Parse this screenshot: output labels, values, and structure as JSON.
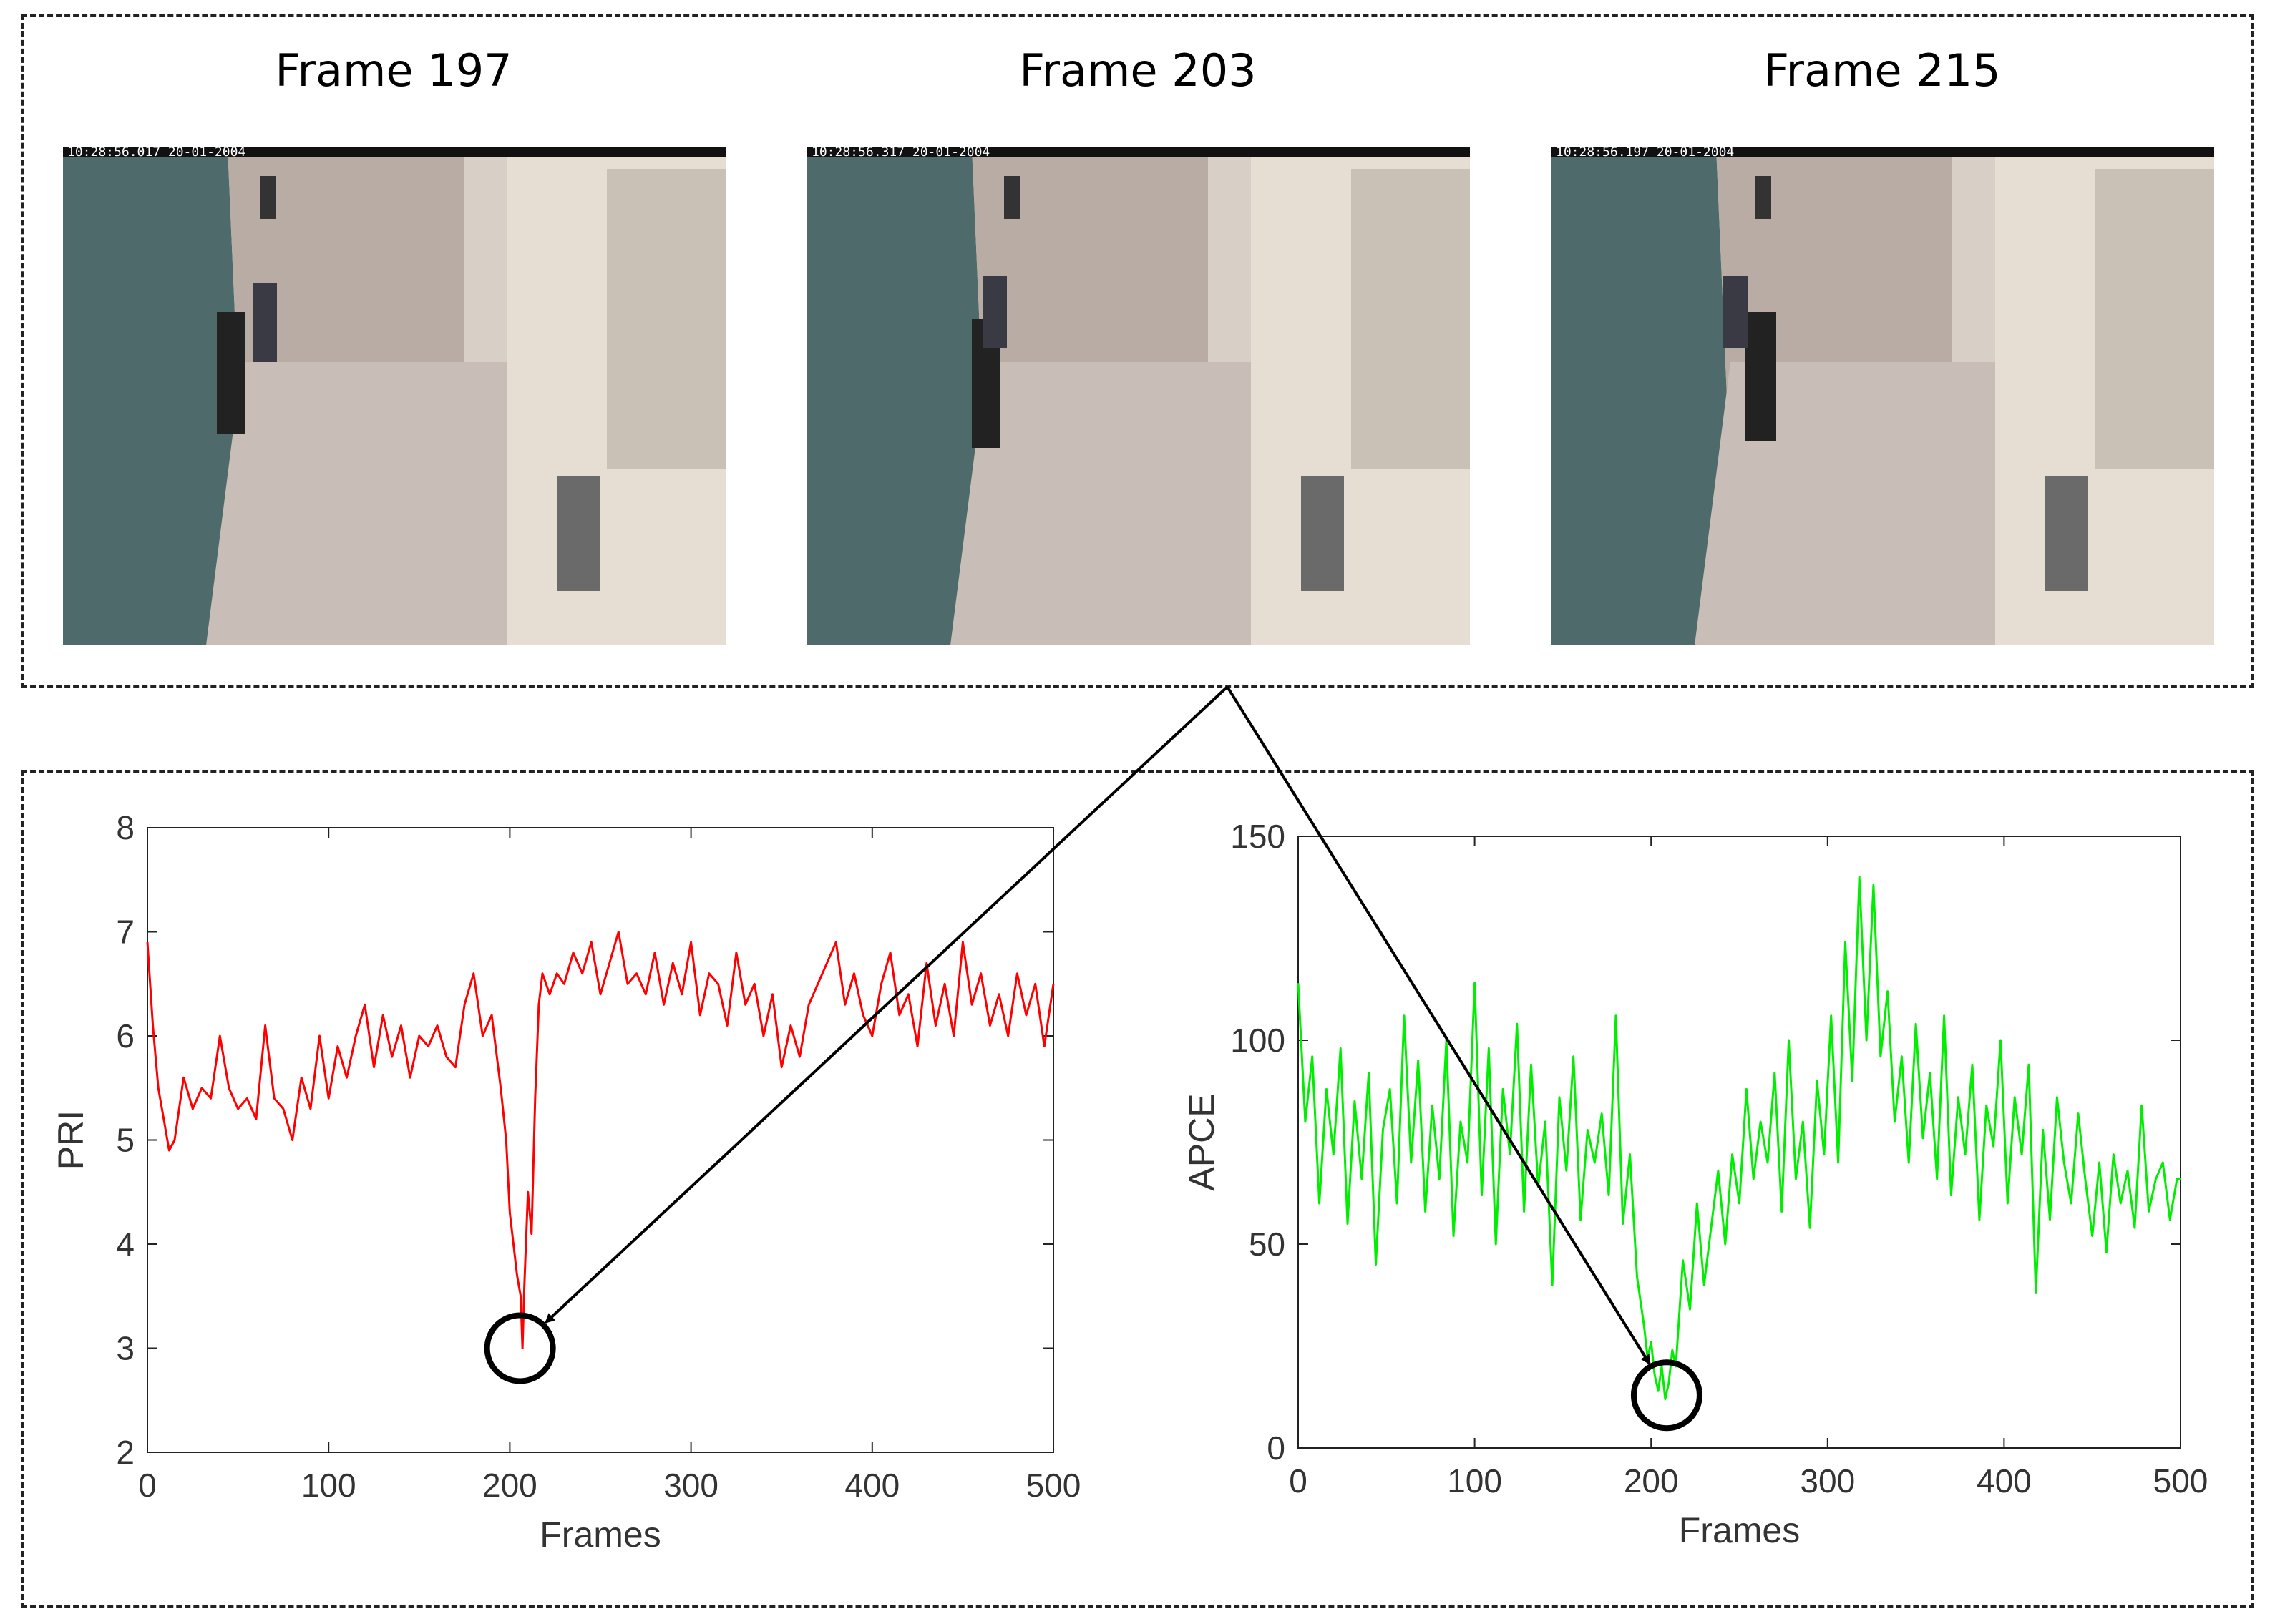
{
  "frames": [
    {
      "title": "Frame 197",
      "timestamp": "10:28:56.017  20-01-2004"
    },
    {
      "title": "Frame 203",
      "timestamp": "10:28:56.317  20-01-2004"
    },
    {
      "title": "Frame 215",
      "timestamp": "10:28:56.197  20-01-2004"
    }
  ],
  "colors": {
    "pri_line": "#ff0000",
    "apce_line": "#00ee00",
    "axis": "#222222",
    "marker": "#000000"
  },
  "chart_data": [
    {
      "type": "line",
      "title": "",
      "xlabel": "Frames",
      "ylabel": "PRI",
      "xlim": [
        0,
        500
      ],
      "ylim": [
        2,
        8
      ],
      "xticks": [
        0,
        100,
        200,
        300,
        400,
        500
      ],
      "yticks": [
        2,
        3,
        4,
        5,
        6,
        7,
        8
      ],
      "grid": false,
      "series": [
        {
          "color": "#ff0000",
          "x": [
            0,
            3,
            6,
            9,
            12,
            15,
            20,
            25,
            30,
            35,
            40,
            45,
            50,
            55,
            60,
            65,
            70,
            75,
            80,
            85,
            90,
            95,
            100,
            105,
            110,
            115,
            120,
            125,
            130,
            135,
            140,
            145,
            150,
            155,
            160,
            165,
            170,
            175,
            180,
            185,
            190,
            195,
            198,
            200,
            202,
            204,
            206,
            207,
            208,
            210,
            212,
            214,
            216,
            218,
            222,
            226,
            230,
            235,
            240,
            245,
            250,
            255,
            260,
            265,
            270,
            275,
            280,
            285,
            290,
            295,
            300,
            305,
            310,
            315,
            320,
            325,
            330,
            335,
            340,
            345,
            350,
            355,
            360,
            365,
            370,
            375,
            380,
            385,
            390,
            395,
            400,
            405,
            410,
            415,
            420,
            425,
            430,
            435,
            440,
            445,
            450,
            455,
            460,
            465,
            470,
            475,
            480,
            485,
            490,
            495,
            500
          ],
          "y": [
            6.9,
            6.1,
            5.5,
            5.2,
            4.9,
            5.0,
            5.6,
            5.3,
            5.5,
            5.4,
            6.0,
            5.5,
            5.3,
            5.4,
            5.2,
            6.1,
            5.4,
            5.3,
            5.0,
            5.6,
            5.3,
            6.0,
            5.4,
            5.9,
            5.6,
            6.0,
            6.3,
            5.7,
            6.2,
            5.8,
            6.1,
            5.6,
            6.0,
            5.9,
            6.1,
            5.8,
            5.7,
            6.3,
            6.6,
            6.0,
            6.2,
            5.5,
            5.0,
            4.3,
            4.0,
            3.7,
            3.5,
            3.0,
            3.6,
            4.5,
            4.1,
            5.4,
            6.3,
            6.6,
            6.4,
            6.6,
            6.5,
            6.8,
            6.6,
            6.9,
            6.4,
            6.7,
            7.0,
            6.5,
            6.6,
            6.4,
            6.8,
            6.3,
            6.7,
            6.4,
            6.9,
            6.2,
            6.6,
            6.5,
            6.1,
            6.8,
            6.3,
            6.5,
            6.0,
            6.4,
            5.7,
            6.1,
            5.8,
            6.3,
            6.5,
            6.7,
            6.9,
            6.3,
            6.6,
            6.2,
            6.0,
            6.5,
            6.8,
            6.2,
            6.4,
            5.9,
            6.7,
            6.1,
            6.5,
            6.0,
            6.9,
            6.3,
            6.6,
            6.1,
            6.4,
            6.0,
            6.6,
            6.2,
            6.5,
            5.9,
            6.5
          ]
        }
      ]
    },
    {
      "type": "line",
      "title": "",
      "xlabel": "Frames",
      "ylabel": "APCE",
      "xlim": [
        0,
        500
      ],
      "ylim": [
        0,
        150
      ],
      "xticks": [
        0,
        100,
        200,
        300,
        400,
        500
      ],
      "yticks": [
        0,
        50,
        100,
        150
      ],
      "grid": false,
      "series": [
        {
          "color": "#00ee00",
          "x": [
            0,
            4,
            8,
            12,
            16,
            20,
            24,
            28,
            32,
            36,
            40,
            44,
            48,
            52,
            56,
            60,
            64,
            68,
            72,
            76,
            80,
            84,
            88,
            92,
            96,
            100,
            104,
            108,
            112,
            116,
            120,
            124,
            128,
            132,
            136,
            140,
            144,
            148,
            152,
            156,
            160,
            164,
            168,
            172,
            176,
            180,
            184,
            188,
            192,
            196,
            198,
            200,
            202,
            204,
            206,
            208,
            210,
            212,
            214,
            218,
            222,
            226,
            230,
            234,
            238,
            242,
            246,
            250,
            254,
            258,
            262,
            266,
            270,
            274,
            278,
            282,
            286,
            290,
            294,
            298,
            302,
            306,
            310,
            314,
            318,
            322,
            326,
            330,
            334,
            338,
            342,
            346,
            350,
            354,
            358,
            362,
            366,
            370,
            374,
            378,
            382,
            386,
            390,
            394,
            398,
            402,
            406,
            410,
            414,
            418,
            422,
            426,
            430,
            434,
            438,
            442,
            446,
            450,
            454,
            458,
            462,
            466,
            470,
            474,
            478,
            482,
            486,
            490,
            494,
            498,
            500
          ],
          "y": [
            114,
            80,
            96,
            60,
            88,
            72,
            98,
            55,
            85,
            66,
            92,
            45,
            78,
            88,
            60,
            106,
            70,
            95,
            58,
            84,
            66,
            100,
            52,
            80,
            70,
            114,
            62,
            98,
            50,
            88,
            72,
            104,
            58,
            94,
            64,
            80,
            40,
            86,
            68,
            96,
            56,
            78,
            70,
            82,
            62,
            106,
            55,
            72,
            42,
            30,
            22,
            26,
            18,
            14,
            20,
            12,
            16,
            24,
            20,
            46,
            34,
            60,
            40,
            54,
            68,
            50,
            72,
            60,
            88,
            66,
            80,
            70,
            92,
            58,
            100,
            66,
            80,
            54,
            90,
            72,
            106,
            70,
            124,
            90,
            140,
            100,
            138,
            96,
            112,
            80,
            96,
            70,
            104,
            76,
            92,
            66,
            106,
            62,
            86,
            72,
            94,
            56,
            84,
            74,
            100,
            60,
            86,
            72,
            94,
            38,
            78,
            56,
            86,
            70,
            60,
            82,
            66,
            52,
            70,
            48,
            72,
            60,
            68,
            54,
            84,
            58,
            66,
            70,
            56,
            66,
            66
          ]
        }
      ]
    }
  ]
}
